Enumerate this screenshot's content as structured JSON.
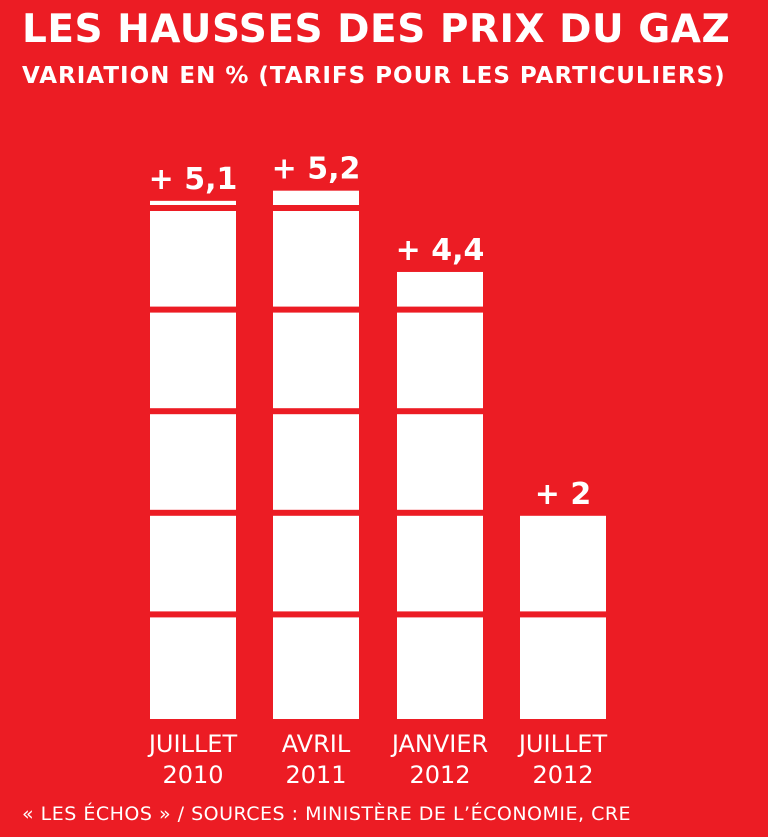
{
  "chart_data": {
    "type": "bar",
    "title": "LES HAUSSES DES PRIX DU GAZ",
    "subtitle": "VARIATION EN % (TARIFS POUR LES PARTICULIERS)",
    "source": "« LES ÉCHOS » / SOURCES : MINISTÈRE DE L’ÉCONOMIE, CRE",
    "categories": [
      [
        "JUILLET",
        "2010"
      ],
      [
        "AVRIL",
        "2011"
      ],
      [
        "JANVIER",
        "2012"
      ],
      [
        "JUILLET",
        "2012"
      ]
    ],
    "values": [
      5.1,
      5.2,
      4.4,
      2
    ],
    "data_labels": [
      "+ 5,1",
      "+ 5,2",
      "+ 4,4",
      "+ 2"
    ],
    "ylim": [
      0,
      5.2
    ],
    "segment_unit": 1,
    "colors": {
      "background": "#ec1c24",
      "bar": "#ffffff"
    }
  }
}
